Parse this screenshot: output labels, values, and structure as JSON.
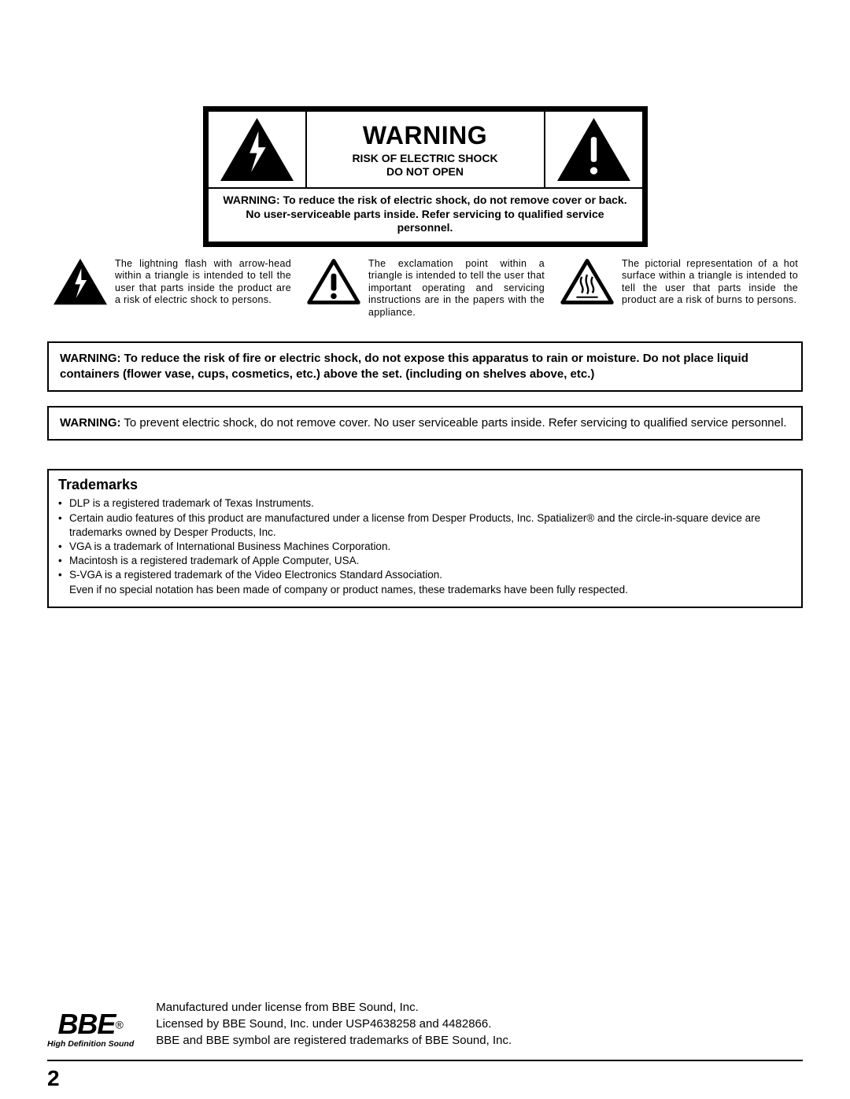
{
  "warning": {
    "title": "WARNING",
    "subtitle": "RISK OF ELECTRIC SHOCK\nDO NOT OPEN",
    "body": "WARNING: To reduce the risk of electric shock, do not remove cover or back. No user-serviceable parts inside. Refer servicing to qualified service personnel."
  },
  "symbols": {
    "lightning": "The lightning flash with arrow-head within a triangle is intended to tell the user that parts inside the product are a risk of electric shock to persons.",
    "exclaim": "The exclamation point within a triangle is intended to tell the user that important operating and servicing instructions are in the papers with the appliance.",
    "hot": "The pictorial representation of a hot surface within a triangle is intended to tell the user that parts inside the product are a risk of burns to persons."
  },
  "box1": "WARNING: To reduce the risk of fire or electric shock, do not expose this apparatus to rain or moisture. Do not place liquid containers (flower vase, cups, cosmetics, etc.) above the set. (including on shelves above, etc.)",
  "box2_prefix": "WARNING:",
  "box2_rest": " To prevent electric shock, do not remove cover. No user serviceable parts inside. Refer servicing to qualified service personnel.",
  "trademarks": {
    "title": "Trademarks",
    "items": [
      "DLP is a registered trademark of Texas Instruments.",
      "Certain audio features of this product are manufactured under a license from Desper Products, Inc. Spatializer® and the circle-in-square device are trademarks owned by Desper Products, Inc.",
      "VGA is a trademark of International Business Machines Corporation.",
      "Macintosh is a registered trademark of Apple Computer, USA.",
      "S-VGA is a registered trademark of the Video Electronics Standard Association."
    ],
    "note": "Even if no special notation has been made of company or product names, these trademarks have been fully respected."
  },
  "bbe": {
    "logo_text": "BBE",
    "reg": "®",
    "tagline": "High Definition Sound",
    "line1": "Manufactured under license from BBE Sound, Inc.",
    "line2": "Licensed by BBE Sound, Inc. under USP4638258 and 4482866.",
    "line3": "BBE and BBE symbol are registered trademarks of BBE Sound, Inc."
  },
  "page_number": "2",
  "colors": {
    "black": "#000000",
    "white": "#ffffff"
  }
}
